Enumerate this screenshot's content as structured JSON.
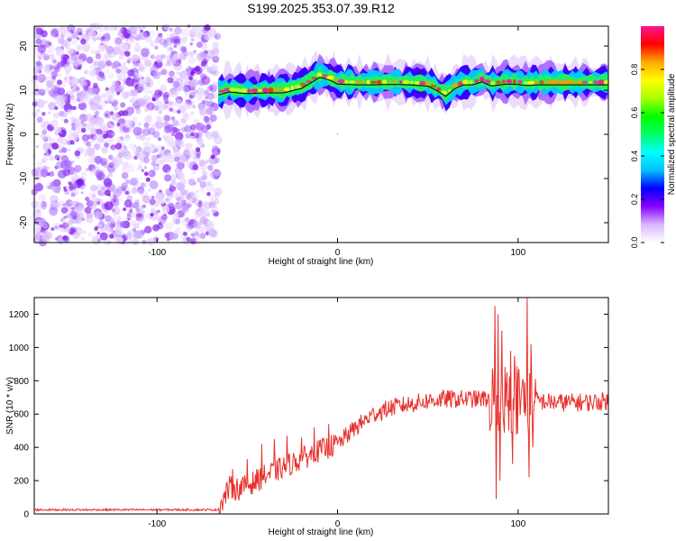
{
  "title": "S199.2025.353.07.39.R12",
  "colors": {
    "snr_line": "#e8302c",
    "frame": "#000000",
    "background": "#ffffff",
    "noise_purple": "#7a1cf0"
  },
  "chart_data": [
    {
      "type": "heatmap",
      "name": "spectrogram",
      "xlabel": "Height of straight line (km)",
      "ylabel": "Frequency (Hz)",
      "xlim": [
        -168,
        150
      ],
      "ylim": [
        -24.5,
        24.5
      ],
      "xticks": [
        -100,
        0,
        100
      ],
      "xtick_labels": [
        "-100",
        "0",
        "100"
      ],
      "yticks": [
        -20,
        -10,
        0,
        10,
        20
      ],
      "ytick_labels": [
        "-20",
        "-10",
        "0",
        "10",
        "20"
      ],
      "noise_region_x": [
        -168,
        -66
      ],
      "signal_band_x": [
        -66,
        150
      ],
      "signal_ridge": {
        "x": [
          -66,
          -60,
          -50,
          -40,
          -30,
          -20,
          -15,
          -10,
          -5,
          0,
          10,
          20,
          30,
          40,
          50,
          55,
          60,
          65,
          70,
          75,
          80,
          85,
          90,
          95,
          100,
          105,
          110,
          120,
          130,
          140,
          150
        ],
        "freq_hz": [
          9.5,
          10.2,
          9.8,
          10.0,
          10.0,
          11.0,
          12.2,
          13.5,
          13.0,
          12.0,
          11.8,
          11.8,
          11.9,
          11.8,
          11.5,
          10.5,
          9.2,
          11.0,
          11.8,
          11.8,
          12.5,
          11.5,
          11.8,
          12.0,
          11.9,
          11.6,
          11.8,
          11.8,
          11.8,
          11.8,
          11.8
        ]
      },
      "colorbar": {
        "label": "Normalized spectral amplitude",
        "ticks": [
          0.0,
          0.2,
          0.4,
          0.6,
          0.8
        ],
        "tick_labels": [
          "0.0",
          "0.2",
          "0.4",
          "0.6",
          "0.8"
        ],
        "range": [
          0,
          1
        ],
        "colormap": [
          "#ffffff",
          "#d9b8ff",
          "#8800ff",
          "#0000ff",
          "#00bfff",
          "#00ffff",
          "#00ff66",
          "#00ff00",
          "#aaff00",
          "#ffff00",
          "#ffaa00",
          "#ff0000",
          "#ff1493"
        ]
      }
    },
    {
      "type": "line",
      "name": "snr",
      "xlabel": "Height of straight line (km)",
      "ylabel": "SNR (10 * v/v)",
      "xlim": [
        -168,
        150
      ],
      "ylim": [
        0,
        1300
      ],
      "xticks": [
        -100,
        0,
        100
      ],
      "xtick_labels": [
        "-100",
        "0",
        "100"
      ],
      "yticks": [
        0,
        200,
        400,
        600,
        800,
        1000,
        1200
      ],
      "ytick_labels": [
        "0",
        "200",
        "400",
        "600",
        "800",
        "1000",
        "1200"
      ],
      "trend": {
        "x": [
          -168,
          -66,
          -60,
          -55,
          -50,
          -40,
          -30,
          -20,
          -10,
          0,
          10,
          20,
          30,
          40,
          50,
          60,
          70,
          80,
          90,
          100,
          110,
          120,
          130,
          140,
          150
        ],
        "snr": [
          25,
          25,
          160,
          150,
          170,
          230,
          280,
          330,
          380,
          420,
          520,
          600,
          640,
          660,
          680,
          690,
          690,
          690,
          700,
          690,
          680,
          670,
          670,
          670,
          680
        ]
      },
      "spikes": {
        "x": [
          -58,
          -50,
          -42,
          -35,
          -28,
          -20,
          -13,
          -5,
          87,
          88,
          89,
          90,
          91,
          96,
          97,
          98,
          105,
          106,
          107,
          108
        ],
        "snr": [
          270,
          330,
          420,
          450,
          470,
          460,
          520,
          540,
          1250,
          90,
          1200,
          200,
          1100,
          980,
          300,
          950,
          1300,
          220,
          1020,
          400
        ]
      }
    }
  ]
}
